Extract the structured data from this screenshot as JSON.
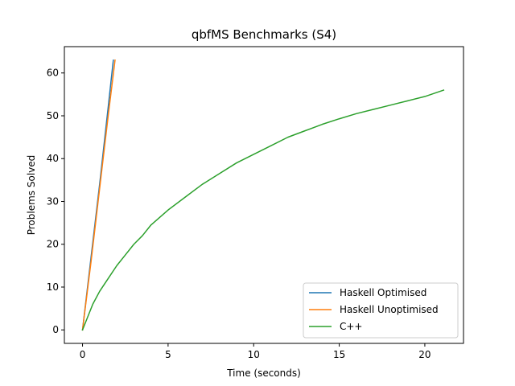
{
  "chart_data": {
    "type": "line",
    "title": "qbfMS Benchmarks (S4)",
    "xlabel": "Time (seconds)",
    "ylabel": "Problems Solved",
    "xlim": [
      -1.06,
      22.26
    ],
    "ylim": [
      -3.15,
      66.15
    ],
    "xticks": [
      0,
      5,
      10,
      15,
      20
    ],
    "yticks": [
      0,
      10,
      20,
      30,
      40,
      50,
      60
    ],
    "xtick_labels": [
      "0",
      "5",
      "10",
      "15",
      "20"
    ],
    "ytick_labels": [
      "0",
      "10",
      "20",
      "30",
      "40",
      "50",
      "60"
    ],
    "grid": false,
    "legend_position": "bottom-right",
    "series": [
      {
        "name": "Haskell Optimised",
        "color": "#1f77b4",
        "x": [
          0,
          0.5,
          1.0,
          1.5,
          1.8
        ],
        "y": [
          0,
          17,
          34,
          52,
          63
        ]
      },
      {
        "name": "Haskell Unoptimised",
        "color": "#ff7f0e",
        "x": [
          0,
          0.5,
          1.0,
          1.5,
          1.9
        ],
        "y": [
          0,
          16,
          33,
          50,
          63
        ]
      },
      {
        "name": "C++",
        "color": "#2ca02c",
        "x": [
          0,
          0.3,
          0.6,
          1.0,
          1.5,
          2.0,
          2.5,
          3.0,
          3.5,
          4.0,
          5.0,
          6.0,
          7.0,
          8.0,
          9.0,
          10.0,
          11.0,
          12.0,
          13.0,
          14.0,
          15.0,
          16.0,
          17.0,
          18.0,
          19.0,
          20.0,
          21.1
        ],
        "y": [
          0,
          3,
          6,
          9,
          12,
          15,
          17.5,
          20,
          22,
          24.5,
          28,
          31,
          34,
          36.5,
          39,
          41,
          43,
          45,
          46.5,
          48,
          49.3,
          50.5,
          51.5,
          52.5,
          53.5,
          54.5,
          56
        ]
      }
    ]
  }
}
